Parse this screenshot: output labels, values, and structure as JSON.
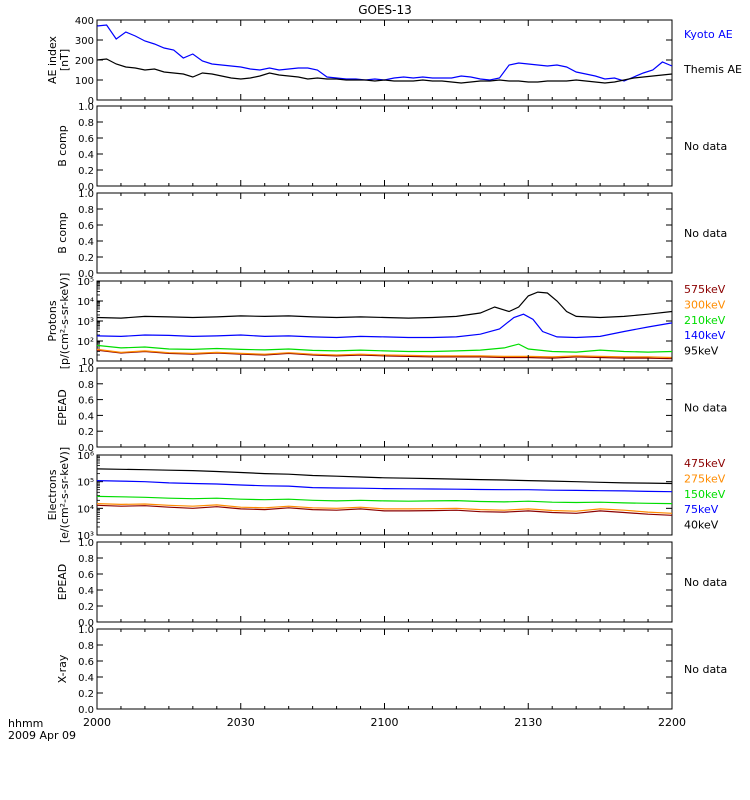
{
  "figure": {
    "title": "GOES-13",
    "xaxis_label_line1": "hhmm",
    "xaxis_label_line2": "2009 Apr 09",
    "xticks": [
      "2000",
      "2030",
      "2100",
      "2130",
      "2200"
    ]
  },
  "chart_data": [
    {
      "type": "line",
      "panel": "ae",
      "ylabel_line1": "AE index",
      "ylabel_line2": "[nT]",
      "ylim": [
        0,
        400
      ],
      "yticks": [
        "0",
        "100",
        "200",
        "300",
        "400"
      ],
      "x_unit": "minutes after 2000 UT",
      "series": [
        {
          "name": "Kyoto AE",
          "color": "#0000ff",
          "x": [
            0,
            2,
            4,
            6,
            8,
            10,
            12,
            14,
            16,
            18,
            20,
            22,
            24,
            26,
            28,
            30,
            32,
            34,
            36,
            38,
            40,
            42,
            44,
            46,
            48,
            50,
            52,
            54,
            56,
            58,
            60,
            62,
            64,
            66,
            68,
            70,
            72,
            74,
            76,
            78,
            80,
            82,
            84,
            86,
            88,
            90,
            92,
            94,
            96,
            98,
            100,
            102,
            104,
            106,
            108,
            110,
            112,
            114,
            116,
            118,
            120
          ],
          "values": [
            370,
            375,
            305,
            340,
            320,
            295,
            280,
            260,
            250,
            210,
            230,
            195,
            180,
            175,
            170,
            165,
            155,
            150,
            160,
            150,
            155,
            160,
            160,
            150,
            115,
            110,
            105,
            105,
            100,
            105,
            100,
            110,
            115,
            110,
            115,
            110,
            110,
            110,
            120,
            115,
            105,
            100,
            110,
            175,
            185,
            180,
            175,
            170,
            175,
            165,
            140,
            130,
            120,
            105,
            110,
            95,
            115,
            135,
            150,
            190,
            170
          ]
        },
        {
          "name": "Themis AE",
          "color": "#000000",
          "x": [
            0,
            2,
            4,
            6,
            8,
            10,
            12,
            14,
            16,
            18,
            20,
            22,
            24,
            26,
            28,
            30,
            32,
            34,
            36,
            38,
            40,
            42,
            44,
            46,
            48,
            50,
            52,
            54,
            56,
            58,
            60,
            62,
            64,
            66,
            68,
            70,
            72,
            74,
            76,
            78,
            80,
            82,
            84,
            86,
            88,
            90,
            92,
            94,
            96,
            98,
            100,
            102,
            104,
            106,
            108,
            110,
            112,
            114,
            116,
            118,
            120
          ],
          "values": [
            200,
            205,
            180,
            165,
            160,
            150,
            155,
            140,
            135,
            130,
            115,
            135,
            130,
            120,
            110,
            105,
            110,
            120,
            135,
            125,
            120,
            115,
            105,
            110,
            105,
            105,
            100,
            100,
            100,
            95,
            100,
            95,
            95,
            95,
            100,
            95,
            95,
            90,
            85,
            90,
            95,
            95,
            100,
            95,
            95,
            90,
            90,
            95,
            95,
            95,
            100,
            95,
            90,
            85,
            90,
            100,
            110,
            115,
            120,
            125,
            130
          ]
        }
      ]
    },
    {
      "type": "line",
      "panel": "bcomp1",
      "ylabel_line1": "B comp",
      "ylim": [
        0,
        1
      ],
      "yticks": [
        "0.0",
        "0.2",
        "0.4",
        "0.6",
        "0.8",
        "1.0"
      ],
      "note": "No data",
      "series": []
    },
    {
      "type": "line",
      "panel": "bcomp2",
      "ylabel_line1": "B comp",
      "ylim": [
        0,
        1
      ],
      "yticks": [
        "0.0",
        "0.2",
        "0.4",
        "0.6",
        "0.8",
        "1.0"
      ],
      "note": "No data",
      "series": []
    },
    {
      "type": "line",
      "panel": "protons",
      "ylabel_line1": "Protons",
      "ylabel_line2": "[p/(cm²-s-sr-keV)]",
      "yscale": "log",
      "ylim": [
        10,
        100000
      ],
      "yticks": [
        "10",
        "10²",
        "10³",
        "10⁴",
        "10⁵"
      ],
      "x_unit": "minutes after 2000 UT",
      "series": [
        {
          "name": "575keV",
          "color": "#8b0000",
          "x": [
            0,
            5,
            10,
            15,
            20,
            25,
            30,
            35,
            40,
            45,
            50,
            55,
            60,
            65,
            70,
            75,
            80,
            85,
            90,
            95,
            100,
            105,
            110,
            115,
            120
          ],
          "values": [
            35,
            25,
            30,
            24,
            22,
            25,
            22,
            20,
            24,
            20,
            18,
            20,
            18,
            17,
            16,
            16,
            16,
            15,
            15,
            14,
            16,
            15,
            14,
            14,
            13
          ]
        },
        {
          "name": "300keV",
          "color": "#ff8c00",
          "x": [
            0,
            5,
            10,
            15,
            20,
            25,
            30,
            35,
            40,
            45,
            50,
            55,
            60,
            65,
            70,
            75,
            80,
            85,
            90,
            95,
            100,
            105,
            110,
            115,
            120
          ],
          "values": [
            38,
            27,
            32,
            26,
            24,
            27,
            24,
            22,
            26,
            22,
            20,
            22,
            20,
            19,
            18,
            18,
            18,
            17,
            17,
            16,
            18,
            17,
            16,
            16,
            15
          ]
        },
        {
          "name": "210keV",
          "color": "#00dd00",
          "x": [
            0,
            5,
            10,
            15,
            20,
            25,
            30,
            35,
            40,
            45,
            50,
            55,
            60,
            65,
            70,
            75,
            80,
            85,
            88,
            90,
            95,
            100,
            105,
            110,
            115,
            120
          ],
          "values": [
            60,
            45,
            50,
            40,
            38,
            42,
            38,
            36,
            40,
            34,
            32,
            35,
            32,
            30,
            30,
            32,
            35,
            45,
            70,
            40,
            30,
            28,
            35,
            30,
            28,
            30
          ]
        },
        {
          "name": "140keV",
          "color": "#0000ff",
          "x": [
            0,
            5,
            10,
            15,
            20,
            25,
            30,
            35,
            40,
            45,
            50,
            55,
            60,
            65,
            70,
            75,
            80,
            84,
            87,
            89,
            91,
            93,
            96,
            100,
            105,
            110,
            115,
            120
          ],
          "values": [
            180,
            170,
            200,
            190,
            170,
            180,
            200,
            170,
            180,
            160,
            150,
            170,
            160,
            150,
            150,
            160,
            220,
            400,
            1500,
            2200,
            1200,
            300,
            160,
            150,
            170,
            300,
            500,
            800
          ]
        },
        {
          "name": "95keV",
          "color": "#000000",
          "x": [
            0,
            5,
            10,
            15,
            20,
            25,
            30,
            35,
            40,
            45,
            50,
            55,
            60,
            65,
            70,
            75,
            80,
            83,
            86,
            88,
            90,
            92,
            94,
            96,
            98,
            100,
            105,
            110,
            115,
            120
          ],
          "values": [
            1500,
            1400,
            1700,
            1600,
            1500,
            1600,
            1800,
            1700,
            1800,
            1600,
            1500,
            1600,
            1500,
            1400,
            1500,
            1700,
            2500,
            5000,
            3000,
            5000,
            18000,
            28000,
            25000,
            10000,
            3000,
            1700,
            1500,
            1700,
            2200,
            3000
          ]
        }
      ]
    },
    {
      "type": "line",
      "panel": "epead1",
      "ylabel_line1": "EPEAD",
      "ylim": [
        0,
        1
      ],
      "yticks": [
        "0.0",
        "0.2",
        "0.4",
        "0.6",
        "0.8",
        "1.0"
      ],
      "note": "No data",
      "series": []
    },
    {
      "type": "line",
      "panel": "electrons",
      "ylabel_line1": "Electrons",
      "ylabel_line2": "[e/(cm²-s-sr-keV)]",
      "yscale": "log",
      "ylim": [
        1000,
        1000000
      ],
      "yticks": [
        "10³",
        "10⁴",
        "10⁵",
        "10⁶"
      ],
      "x_unit": "minutes after 2000 UT",
      "series": [
        {
          "name": "475keV",
          "color": "#8b0000",
          "x": [
            0,
            5,
            10,
            15,
            20,
            25,
            30,
            35,
            40,
            45,
            50,
            55,
            60,
            65,
            70,
            75,
            80,
            85,
            90,
            95,
            100,
            105,
            110,
            115,
            120
          ],
          "values": [
            13000,
            12000,
            12500,
            11000,
            10000,
            11500,
            9500,
            9000,
            10500,
            9000,
            8500,
            9500,
            8000,
            8000,
            8200,
            8500,
            7500,
            7200,
            8000,
            7000,
            6500,
            8000,
            7000,
            6000,
            5500
          ]
        },
        {
          "name": "275keV",
          "color": "#ff8c00",
          "x": [
            0,
            5,
            10,
            15,
            20,
            25,
            30,
            35,
            40,
            45,
            50,
            55,
            60,
            65,
            70,
            75,
            80,
            85,
            90,
            95,
            100,
            105,
            110,
            115,
            120
          ],
          "values": [
            15000,
            14000,
            14500,
            13000,
            12000,
            13500,
            11000,
            10500,
            12000,
            10500,
            10000,
            11000,
            9500,
            9500,
            9700,
            10000,
            9000,
            8500,
            9500,
            8300,
            7800,
            9500,
            8500,
            7200,
            6500
          ]
        },
        {
          "name": "150keV",
          "color": "#00dd00",
          "x": [
            0,
            5,
            10,
            15,
            20,
            25,
            30,
            35,
            40,
            45,
            50,
            55,
            60,
            65,
            70,
            75,
            80,
            85,
            90,
            95,
            100,
            105,
            110,
            115,
            120
          ],
          "values": [
            28000,
            27000,
            26000,
            24000,
            23000,
            24000,
            22000,
            21000,
            22000,
            20000,
            19000,
            20000,
            19000,
            18500,
            19000,
            19500,
            18000,
            17500,
            18500,
            17000,
            16500,
            17000,
            16000,
            15500,
            15000
          ]
        },
        {
          "name": "75keV",
          "color": "#0000ff",
          "x": [
            0,
            5,
            10,
            15,
            20,
            25,
            30,
            35,
            40,
            45,
            50,
            55,
            60,
            65,
            70,
            75,
            80,
            85,
            90,
            95,
            100,
            105,
            110,
            115,
            120
          ],
          "values": [
            110000,
            105000,
            100000,
            90000,
            85000,
            82000,
            75000,
            70000,
            68000,
            60000,
            58000,
            57000,
            55000,
            54000,
            53000,
            52000,
            51000,
            50000,
            50000,
            48000,
            47000,
            46000,
            45000,
            43000,
            42000
          ]
        },
        {
          "name": "40keV",
          "color": "#000000",
          "x": [
            0,
            5,
            10,
            15,
            20,
            25,
            30,
            35,
            40,
            45,
            50,
            55,
            60,
            65,
            70,
            75,
            80,
            85,
            90,
            95,
            100,
            105,
            110,
            115,
            120
          ],
          "values": [
            300000,
            290000,
            280000,
            270000,
            260000,
            240000,
            220000,
            200000,
            190000,
            170000,
            160000,
            150000,
            140000,
            135000,
            130000,
            125000,
            120000,
            115000,
            110000,
            105000,
            100000,
            95000,
            90000,
            88000,
            85000
          ]
        }
      ]
    },
    {
      "type": "line",
      "panel": "epead2",
      "ylabel_line1": "EPEAD",
      "ylim": [
        0,
        1
      ],
      "yticks": [
        "0.0",
        "0.2",
        "0.4",
        "0.6",
        "0.8",
        "1.0"
      ],
      "note": "No data",
      "series": []
    },
    {
      "type": "line",
      "panel": "xray",
      "ylabel_line1": "X-ray",
      "ylim": [
        0,
        1
      ],
      "yticks": [
        "0.0",
        "0.2",
        "0.4",
        "0.6",
        "0.8",
        "1.0"
      ],
      "note": "No data",
      "series": []
    }
  ]
}
